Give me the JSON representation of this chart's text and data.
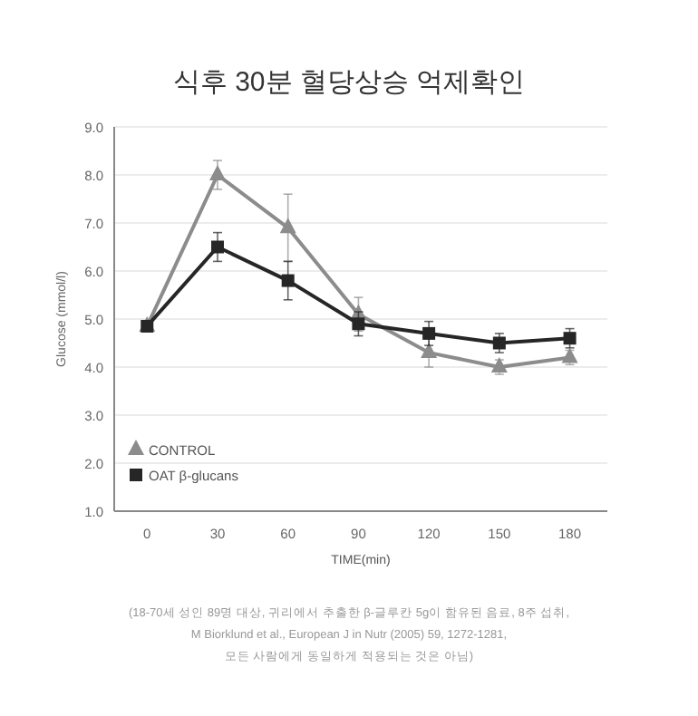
{
  "chart_data": {
    "type": "line",
    "title": "식후 30분 혈당상승 억제확인",
    "xlabel": "TIME(min)",
    "ylabel": "Glucose (mmol/l)",
    "x": [
      0,
      30,
      60,
      90,
      120,
      150,
      180
    ],
    "series": [
      {
        "name": "CONTROL",
        "color": "#8c8c8c",
        "marker": "triangle",
        "values": [
          4.85,
          8.0,
          6.9,
          5.1,
          4.3,
          4.0,
          4.2
        ],
        "errors": [
          null,
          0.3,
          0.7,
          0.35,
          0.3,
          0.15,
          0.15
        ]
      },
      {
        "name": "OAT β-glucans",
        "color": "#262626",
        "marker": "square",
        "values": [
          4.85,
          6.5,
          5.8,
          4.9,
          4.7,
          4.5,
          4.6
        ],
        "errors": [
          null,
          0.3,
          0.4,
          0.25,
          0.25,
          0.2,
          0.2
        ]
      }
    ],
    "xlim": [
      -14,
      196
    ],
    "xticks": [
      0,
      30,
      60,
      90,
      120,
      150,
      180
    ],
    "ylim": [
      1.0,
      9.0
    ],
    "yticks": [
      {
        "value": 1,
        "label": "1.0"
      },
      {
        "value": 2,
        "label": "2.0"
      },
      {
        "value": 3,
        "label": "3.0"
      },
      {
        "value": 4,
        "label": "4.0"
      },
      {
        "value": 5,
        "label": "5.0"
      },
      {
        "value": 6,
        "label": "6.0"
      },
      {
        "value": 7,
        "label": "7.0"
      },
      {
        "value": 8,
        "label": "8.0"
      },
      {
        "value": 9,
        "label": "9.0"
      }
    ],
    "grid": "y",
    "legend": "bottom left",
    "line_style": "solid",
    "annotations": [
      "(18-70세 성인 89명 대상, 귀리에서 추출한 β-글루칸 5g이 함유된 음료, 8주 섭취,",
      "M Biorklund et al., European J in Nutr (2005) 59, 1272-1281,",
      "모든 사람에게 동일하게 적용되는 것은 아님)"
    ]
  }
}
